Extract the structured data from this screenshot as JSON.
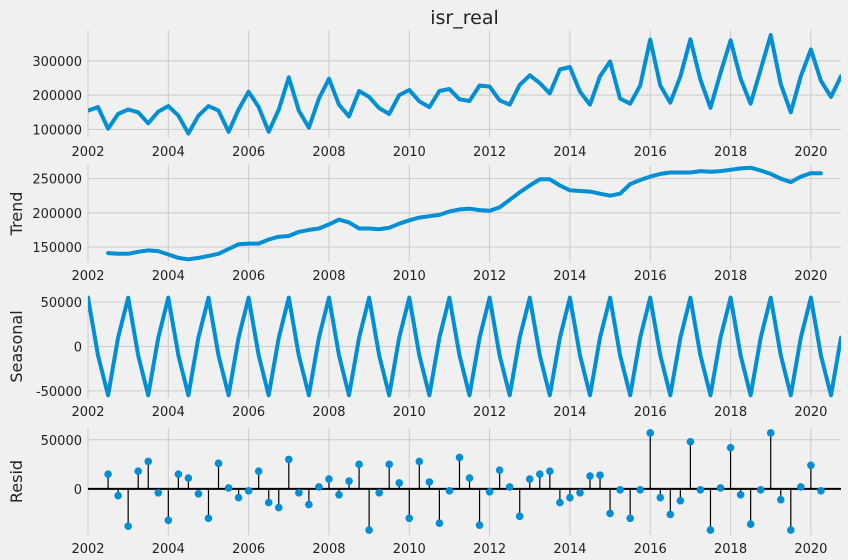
{
  "chart_data": [
    {
      "type": "line",
      "title": "isr_real",
      "ylabel": "",
      "x_ticks": [
        "2002",
        "2004",
        "2006",
        "2008",
        "2010",
        "2012",
        "2014",
        "2016",
        "2018",
        "2020"
      ],
      "y_ticks": [
        "100000",
        "200000",
        "300000"
      ],
      "xlim": [
        2002.0,
        2020.75
      ],
      "ylim": [
        75000,
        390000
      ],
      "grid": true,
      "color": "#008fd5",
      "x": [
        2002.0,
        2002.25,
        2002.5,
        2002.75,
        2003.0,
        2003.25,
        2003.5,
        2003.75,
        2004.0,
        2004.25,
        2004.5,
        2004.75,
        2005.0,
        2005.25,
        2005.5,
        2005.75,
        2006.0,
        2006.25,
        2006.5,
        2006.75,
        2007.0,
        2007.25,
        2007.5,
        2007.75,
        2008.0,
        2008.25,
        2008.5,
        2008.75,
        2009.0,
        2009.25,
        2009.5,
        2009.75,
        2010.0,
        2010.25,
        2010.5,
        2010.75,
        2011.0,
        2011.25,
        2011.5,
        2011.75,
        2012.0,
        2012.25,
        2012.5,
        2012.75,
        2013.0,
        2013.25,
        2013.5,
        2013.75,
        2014.0,
        2014.25,
        2014.5,
        2014.75,
        2015.0,
        2015.25,
        2015.5,
        2015.75,
        2016.0,
        2016.25,
        2016.5,
        2016.75,
        2017.0,
        2017.25,
        2017.5,
        2017.75,
        2018.0,
        2018.25,
        2018.5,
        2018.75,
        2019.0,
        2019.25,
        2019.5,
        2019.75,
        2020.0,
        2020.25,
        2020.5,
        2020.75
      ],
      "values": [
        155000,
        165000,
        102000,
        145000,
        158000,
        150000,
        118000,
        152000,
        168000,
        140000,
        88000,
        140000,
        168000,
        155000,
        93000,
        158000,
        210000,
        165000,
        93000,
        158000,
        252000,
        155000,
        105000,
        190000,
        248000,
        172000,
        138000,
        212000,
        195000,
        162000,
        145000,
        200000,
        215000,
        182000,
        165000,
        212000,
        218000,
        188000,
        183000,
        228000,
        225000,
        185000,
        172000,
        230000,
        258000,
        235000,
        205000,
        275000,
        282000,
        210000,
        172000,
        255000,
        298000,
        190000,
        175000,
        228000,
        362000,
        228000,
        178000,
        255000,
        363000,
        245000,
        163000,
        265000,
        360000,
        248000,
        175000,
        275000,
        375000,
        232000,
        150000,
        255000,
        333000,
        242000,
        195000,
        255000
      ]
    },
    {
      "type": "line",
      "title": "",
      "ylabel": "Trend",
      "x_ticks": [
        "2002",
        "2004",
        "2006",
        "2008",
        "2010",
        "2012",
        "2014",
        "2016",
        "2018",
        "2020"
      ],
      "y_ticks": [
        "150000",
        "200000",
        "250000"
      ],
      "xlim": [
        2002.0,
        2020.75
      ],
      "ylim": [
        128000,
        270000
      ],
      "grid": true,
      "color": "#008fd5",
      "x": [
        2002.5,
        2002.75,
        2003.0,
        2003.25,
        2003.5,
        2003.75,
        2004.0,
        2004.25,
        2004.5,
        2004.75,
        2005.0,
        2005.25,
        2005.5,
        2005.75,
        2006.0,
        2006.25,
        2006.5,
        2006.75,
        2007.0,
        2007.25,
        2007.5,
        2007.75,
        2008.0,
        2008.25,
        2008.5,
        2008.75,
        2009.0,
        2009.25,
        2009.5,
        2009.75,
        2010.0,
        2010.25,
        2010.5,
        2010.75,
        2011.0,
        2011.25,
        2011.5,
        2011.75,
        2012.0,
        2012.25,
        2012.5,
        2012.75,
        2013.0,
        2013.25,
        2013.5,
        2013.75,
        2014.0,
        2014.25,
        2014.5,
        2014.75,
        2015.0,
        2015.25,
        2015.5,
        2015.75,
        2016.0,
        2016.25,
        2016.5,
        2016.75,
        2017.0,
        2017.25,
        2017.5,
        2017.75,
        2018.0,
        2018.25,
        2018.5,
        2018.75,
        2019.0,
        2019.25,
        2019.5,
        2019.75,
        2020.0,
        2020.25
      ],
      "values": [
        141000,
        140000,
        140000,
        143000,
        145000,
        144000,
        139000,
        134000,
        132000,
        134000,
        137000,
        140000,
        147000,
        154000,
        155000,
        155000,
        161000,
        165000,
        166000,
        172000,
        175000,
        177000,
        183000,
        190000,
        186000,
        177000,
        177000,
        176000,
        178000,
        184000,
        189000,
        193000,
        195000,
        197000,
        202000,
        205000,
        206000,
        204000,
        203000,
        208000,
        219000,
        230000,
        240000,
        249000,
        249000,
        240000,
        233000,
        232000,
        231000,
        228000,
        225000,
        228000,
        242000,
        248000,
        253000,
        257000,
        259000,
        259000,
        259000,
        261000,
        260000,
        261000,
        263000,
        265000,
        266000,
        262000,
        257000,
        250000,
        245000,
        253000,
        258000,
        258000
      ]
    },
    {
      "type": "line",
      "title": "",
      "ylabel": "Seasonal",
      "x_ticks": [
        "2002",
        "2004",
        "2006",
        "2008",
        "2010",
        "2012",
        "2014",
        "2016",
        "2018",
        "2020"
      ],
      "y_ticks": [
        "-50000",
        "0",
        "50000"
      ],
      "xlim": [
        2002.0,
        2020.75
      ],
      "ylim": [
        -58000,
        58000
      ],
      "grid": true,
      "color": "#008fd5",
      "x": [
        2002.0,
        2002.25,
        2002.5,
        2002.75,
        2003.0,
        2003.25,
        2003.5,
        2003.75,
        2004.0,
        2004.25,
        2004.5,
        2004.75,
        2005.0,
        2005.25,
        2005.5,
        2005.75,
        2006.0,
        2006.25,
        2006.5,
        2006.75,
        2007.0,
        2007.25,
        2007.5,
        2007.75,
        2008.0,
        2008.25,
        2008.5,
        2008.75,
        2009.0,
        2009.25,
        2009.5,
        2009.75,
        2010.0,
        2010.25,
        2010.5,
        2010.75,
        2011.0,
        2011.25,
        2011.5,
        2011.75,
        2012.0,
        2012.25,
        2012.5,
        2012.75,
        2013.0,
        2013.25,
        2013.5,
        2013.75,
        2014.0,
        2014.25,
        2014.5,
        2014.75,
        2015.0,
        2015.25,
        2015.5,
        2015.75,
        2016.0,
        2016.25,
        2016.5,
        2016.75,
        2017.0,
        2017.25,
        2017.5,
        2017.75,
        2018.0,
        2018.25,
        2018.5,
        2018.75,
        2019.0,
        2019.25,
        2019.5,
        2019.75,
        2020.0,
        2020.25,
        2020.5,
        2020.75
      ],
      "values": [
        55000,
        -10000,
        -55000,
        10000,
        55000,
        -10000,
        -55000,
        10000,
        55000,
        -10000,
        -55000,
        10000,
        55000,
        -10000,
        -55000,
        10000,
        55000,
        -10000,
        -55000,
        10000,
        55000,
        -10000,
        -55000,
        10000,
        55000,
        -10000,
        -55000,
        10000,
        55000,
        -10000,
        -55000,
        10000,
        55000,
        -10000,
        -55000,
        10000,
        55000,
        -10000,
        -55000,
        10000,
        55000,
        -10000,
        -55000,
        10000,
        55000,
        -10000,
        -55000,
        10000,
        55000,
        -10000,
        -55000,
        10000,
        55000,
        -10000,
        -55000,
        10000,
        55000,
        -10000,
        -55000,
        10000,
        55000,
        -10000,
        -55000,
        10000,
        55000,
        -10000,
        -55000,
        10000,
        55000,
        -10000,
        -55000,
        10000,
        55000,
        -10000,
        -55000,
        10000
      ]
    },
    {
      "type": "scatter",
      "title": "",
      "ylabel": "Resid",
      "x_ticks": [
        "2002",
        "2004",
        "2006",
        "2008",
        "2010",
        "2012",
        "2014",
        "2016",
        "2018",
        "2020"
      ],
      "y_ticks": [
        "0",
        "50000"
      ],
      "xlim": [
        2002.0,
        2020.75
      ],
      "ylim": [
        -47000,
        62000
      ],
      "grid": true,
      "baseline": 0,
      "color": "#008fd5",
      "x": [
        2002.5,
        2002.75,
        2003.0,
        2003.25,
        2003.5,
        2003.75,
        2004.0,
        2004.25,
        2004.5,
        2004.75,
        2005.0,
        2005.25,
        2005.5,
        2005.75,
        2006.0,
        2006.25,
        2006.5,
        2006.75,
        2007.0,
        2007.25,
        2007.5,
        2007.75,
        2008.0,
        2008.25,
        2008.5,
        2008.75,
        2009.0,
        2009.25,
        2009.5,
        2009.75,
        2010.0,
        2010.25,
        2010.5,
        2010.75,
        2011.0,
        2011.25,
        2011.5,
        2011.75,
        2012.0,
        2012.25,
        2012.5,
        2012.75,
        2013.0,
        2013.25,
        2013.5,
        2013.75,
        2014.0,
        2014.25,
        2014.5,
        2014.75,
        2015.0,
        2015.25,
        2015.5,
        2015.75,
        2016.0,
        2016.25,
        2016.5,
        2016.75,
        2017.0,
        2017.25,
        2017.5,
        2017.75,
        2018.0,
        2018.25,
        2018.5,
        2018.75,
        2019.0,
        2019.25,
        2019.5,
        2019.75,
        2020.0,
        2020.25
      ],
      "values": [
        15000,
        -7000,
        -38000,
        18000,
        28000,
        -4000,
        -32000,
        15000,
        11000,
        -5000,
        -30000,
        26000,
        1000,
        -9000,
        -2000,
        18000,
        -14000,
        -19000,
        30000,
        -4000,
        -16000,
        2000,
        10000,
        -6000,
        8000,
        25000,
        -42000,
        -4000,
        25000,
        6000,
        -30000,
        28000,
        7000,
        -35000,
        -2000,
        32000,
        11000,
        -37000,
        -3000,
        19000,
        2000,
        -28000,
        10000,
        15000,
        18000,
        -14000,
        -9000,
        -4000,
        13000,
        14000,
        -25000,
        -1000,
        -30000,
        -1000,
        57000,
        -9000,
        -26000,
        -12000,
        48000,
        -1000,
        -42000,
        1000,
        42000,
        -6000,
        -36000,
        -1000,
        57000,
        -11000,
        -42000,
        2000,
        24000,
        -2000
      ]
    }
  ]
}
